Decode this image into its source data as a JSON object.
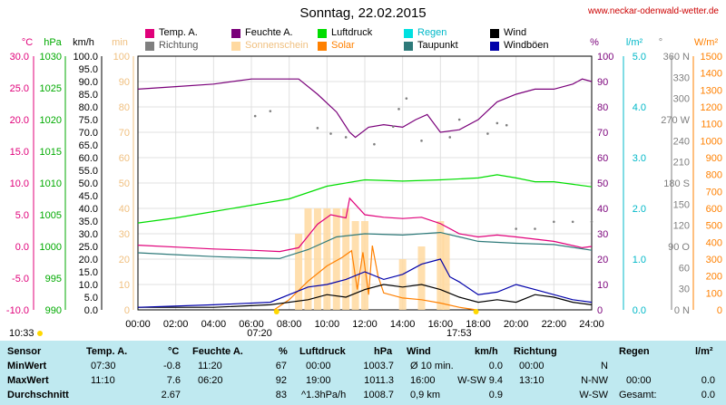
{
  "title": "Sonntag, 22.02.2015",
  "site": "www.neckar-odenwald-wetter.de",
  "legend": [
    {
      "label": "Temp. A.",
      "color": "#e0007a"
    },
    {
      "label": "Feuchte A.",
      "color": "#7a007a"
    },
    {
      "label": "Luftdruck",
      "color": "#00dd00"
    },
    {
      "label": "Regen",
      "color": "#00e0e0"
    },
    {
      "label": "Wind",
      "color": "#000000"
    },
    {
      "label": "Richtung",
      "color": "#7f7f7f"
    },
    {
      "label": "Sonnenschein",
      "color": "#ffd9a0"
    },
    {
      "label": "Solar",
      "color": "#ff8000"
    },
    {
      "label": "Taupunkt",
      "color": "#2e7a7a"
    },
    {
      "label": "Windböen",
      "color": "#0000aa"
    }
  ],
  "axis_headers": {
    "temp": "°C",
    "press": "hPa",
    "wind": "km/h",
    "sun": "min",
    "hum": "%",
    "rain": "l/m²",
    "dir": "°",
    "solar": "W/m²"
  },
  "sunrise": "07:20",
  "sunset": "17:53",
  "start_time": "10:33",
  "chart_data": {
    "type": "line",
    "title": "Sonntag, 22.02.2015",
    "x_ticks": [
      "00:00",
      "02:00",
      "04:00",
      "06:00",
      "08:00",
      "10:00",
      "12:00",
      "14:00",
      "16:00",
      "18:00",
      "20:00",
      "22:00",
      "24:00"
    ],
    "axes": {
      "temp": {
        "min": -10,
        "max": 30,
        "ticks": [
          "30.0",
          "25.0",
          "20.0",
          "15.0",
          "10.0",
          "5.0",
          "0.0",
          "-5.0",
          "-10.0"
        ]
      },
      "press": {
        "min": 990,
        "max": 1030,
        "ticks": [
          "1030",
          "1025",
          "1020",
          "1015",
          "1010",
          "1005",
          "1000",
          "995",
          "990"
        ]
      },
      "wind": {
        "min": 0,
        "max": 100,
        "ticks": [
          "100.0",
          "95.0",
          "90.0",
          "85.0",
          "80.0",
          "75.0",
          "70.0",
          "65.0",
          "60.0",
          "55.0",
          "50.0",
          "45.0",
          "40.0",
          "35.0",
          "30.0",
          "25.0",
          "20.0",
          "15.0",
          "10.0",
          "5.0",
          "0.0"
        ]
      },
      "sun": {
        "min": 0,
        "max": 100,
        "ticks": [
          "100",
          "90",
          "80",
          "70",
          "60",
          "50",
          "40",
          "30",
          "20",
          "10",
          "0"
        ]
      },
      "hum": {
        "min": 0,
        "max": 100,
        "ticks": [
          "100",
          "90",
          "80",
          "70",
          "60",
          "50",
          "40",
          "30",
          "20",
          "10",
          "0"
        ]
      },
      "rain": {
        "min": 0,
        "max": 5,
        "ticks": [
          "5.0",
          "4.0",
          "3.0",
          "2.0",
          "1.0",
          "0.0"
        ]
      },
      "dir": {
        "min": 0,
        "max": 360,
        "ticks": [
          "360 N",
          "330",
          "300",
          "270 W",
          "240",
          "210",
          "180 S",
          "150",
          "120",
          "90 O",
          "60",
          "30",
          "0 N"
        ]
      },
      "solar": {
        "min": 0,
        "max": 1500,
        "ticks": [
          "1500",
          "1400",
          "1300",
          "1200",
          "1100",
          "1000",
          "900",
          "800",
          "700",
          "600",
          "500",
          "400",
          "300",
          "200",
          "100",
          "0"
        ]
      }
    },
    "series": [
      {
        "name": "Temp. A.",
        "axis": "temp",
        "color": "#e0007a",
        "points": [
          [
            0,
            0.2
          ],
          [
            2,
            -0.1
          ],
          [
            4,
            -0.4
          ],
          [
            6,
            -0.6
          ],
          [
            7.5,
            -0.8
          ],
          [
            8.5,
            -0.2
          ],
          [
            9.5,
            3.5
          ],
          [
            10.2,
            5
          ],
          [
            11,
            4.5
          ],
          [
            11.2,
            7.6
          ],
          [
            12,
            5.0
          ],
          [
            13,
            4.6
          ],
          [
            14,
            4.4
          ],
          [
            15,
            4.6
          ],
          [
            16,
            3.6
          ],
          [
            17,
            2.0
          ],
          [
            18,
            1.5
          ],
          [
            19,
            1.8
          ],
          [
            20,
            1.5
          ],
          [
            22,
            0.8
          ],
          [
            23.5,
            -0.2
          ],
          [
            24,
            0
          ]
        ]
      },
      {
        "name": "Feuchte A.",
        "axis": "hum",
        "color": "#7a007a",
        "points": [
          [
            0,
            87
          ],
          [
            2,
            88
          ],
          [
            4,
            89
          ],
          [
            6,
            91
          ],
          [
            7.5,
            91
          ],
          [
            8.5,
            91
          ],
          [
            9.5,
            85
          ],
          [
            10.5,
            78
          ],
          [
            11.2,
            70
          ],
          [
            11.5,
            68
          ],
          [
            12.2,
            72
          ],
          [
            13,
            73
          ],
          [
            14,
            72
          ],
          [
            14.7,
            75
          ],
          [
            15.3,
            77
          ],
          [
            16,
            70
          ],
          [
            17,
            71
          ],
          [
            18,
            75
          ],
          [
            19,
            82
          ],
          [
            20,
            85
          ],
          [
            21,
            87
          ],
          [
            22,
            87
          ],
          [
            23,
            89
          ],
          [
            23.5,
            91
          ],
          [
            24,
            90
          ]
        ]
      },
      {
        "name": "Luftdruck",
        "axis": "press",
        "color": "#00dd00",
        "points": [
          [
            0,
            1003.7
          ],
          [
            2,
            1004.5
          ],
          [
            4,
            1005.5
          ],
          [
            6,
            1006.5
          ],
          [
            8,
            1007.5
          ],
          [
            10,
            1009.5
          ],
          [
            12,
            1010.5
          ],
          [
            14,
            1010.3
          ],
          [
            16,
            1010.5
          ],
          [
            18,
            1010.8
          ],
          [
            19,
            1011.3
          ],
          [
            20,
            1010.8
          ],
          [
            21,
            1010.2
          ],
          [
            22,
            1010.2
          ],
          [
            23,
            1009.8
          ],
          [
            24,
            1009.4
          ]
        ]
      },
      {
        "name": "Taupunkt",
        "axis": "temp",
        "color": "#2e7a7a",
        "points": [
          [
            0,
            -1.0
          ],
          [
            2,
            -1.3
          ],
          [
            4,
            -1.6
          ],
          [
            6,
            -1.8
          ],
          [
            7.5,
            -1.9
          ],
          [
            9,
            -0.5
          ],
          [
            10.5,
            1.5
          ],
          [
            12,
            2.0
          ],
          [
            14,
            1.8
          ],
          [
            16,
            2.2
          ],
          [
            17,
            1.5
          ],
          [
            18,
            0.8
          ],
          [
            20,
            0.5
          ],
          [
            22,
            0.3
          ],
          [
            24,
            -0.6
          ]
        ]
      },
      {
        "name": "Solar",
        "axis": "solar",
        "color": "#ff8000",
        "points": [
          [
            7.2,
            0
          ],
          [
            8,
            60
          ],
          [
            9,
            170
          ],
          [
            10,
            260
          ],
          [
            10.8,
            310
          ],
          [
            11.3,
            350
          ],
          [
            11.6,
            120
          ],
          [
            11.9,
            340
          ],
          [
            12.2,
            90
          ],
          [
            12.4,
            380
          ],
          [
            12.7,
            200
          ],
          [
            13,
            100
          ],
          [
            14,
            70
          ],
          [
            15,
            60
          ],
          [
            16,
            40
          ],
          [
            17,
            15
          ],
          [
            17.9,
            0
          ]
        ]
      },
      {
        "name": "Wind",
        "axis": "wind",
        "color": "#000000",
        "points": [
          [
            0,
            1
          ],
          [
            4,
            1
          ],
          [
            7,
            2
          ],
          [
            9,
            4
          ],
          [
            10,
            6
          ],
          [
            11,
            5
          ],
          [
            12,
            8
          ],
          [
            13,
            10
          ],
          [
            14,
            9
          ],
          [
            15,
            10
          ],
          [
            16,
            8
          ],
          [
            17,
            5
          ],
          [
            18,
            3
          ],
          [
            19,
            4
          ],
          [
            20,
            3
          ],
          [
            21,
            6
          ],
          [
            22,
            5
          ],
          [
            23,
            3
          ],
          [
            24,
            2
          ]
        ]
      },
      {
        "name": "Windböen",
        "axis": "wind",
        "color": "#0000aa",
        "points": [
          [
            0,
            1
          ],
          [
            4,
            2
          ],
          [
            7,
            3
          ],
          [
            8,
            6
          ],
          [
            9,
            9
          ],
          [
            10,
            10
          ],
          [
            11,
            12
          ],
          [
            12,
            15
          ],
          [
            13,
            12
          ],
          [
            14,
            14
          ],
          [
            15,
            18
          ],
          [
            16,
            20
          ],
          [
            16.5,
            13
          ],
          [
            17,
            11
          ],
          [
            18,
            6
          ],
          [
            19,
            7
          ],
          [
            20,
            10
          ],
          [
            21,
            8
          ],
          [
            22,
            6
          ],
          [
            23,
            4
          ],
          [
            24,
            3
          ]
        ]
      }
    ],
    "direction_points": [
      [
        6.2,
        275
      ],
      [
        7,
        282
      ],
      [
        9.5,
        258
      ],
      [
        10.2,
        250
      ],
      [
        11,
        245
      ],
      [
        12.5,
        235
      ],
      [
        13.5,
        260
      ],
      [
        13.8,
        285
      ],
      [
        14.2,
        300
      ],
      [
        15,
        240
      ],
      [
        16.5,
        245
      ],
      [
        17,
        270
      ],
      [
        18.5,
        250
      ],
      [
        19,
        265
      ],
      [
        19.5,
        262
      ],
      [
        20,
        115
      ],
      [
        21,
        115
      ],
      [
        22,
        125
      ],
      [
        23,
        125
      ],
      [
        24,
        125
      ]
    ],
    "sunshine_minutes_series": [
      [
        8.5,
        30
      ],
      [
        9,
        40
      ],
      [
        9.5,
        40
      ],
      [
        10,
        40
      ],
      [
        10.5,
        40
      ],
      [
        11,
        40
      ],
      [
        11.5,
        35
      ],
      [
        12,
        35
      ],
      [
        14,
        20
      ],
      [
        15,
        25
      ],
      [
        16,
        35
      ],
      [
        16.3,
        30
      ]
    ]
  },
  "stats": {
    "headers": [
      "Sensor",
      "Temp. A.",
      "°C",
      "Feuchte A.",
      "%",
      "Luftdruck",
      "hPa",
      "Wind",
      "km/h",
      "Richtung",
      "Regen",
      "l/m²"
    ],
    "rows": [
      {
        "label": "MinWert",
        "temp_time": "07:30",
        "temp_val": "-0.8",
        "hum_time": "11:20",
        "hum_val": "67",
        "press_time": "00:00",
        "press_val": "1003.7",
        "wind_time": "Ø 10 min.",
        "wind_val": "0.0",
        "dir_time": "00:00",
        "dir_val": "N",
        "rain_time": "",
        "rain_val": ""
      },
      {
        "label": "MaxWert",
        "temp_time": "11:10",
        "temp_val": "7.6",
        "hum_time": "06:20",
        "hum_val": "92",
        "press_time": "19:00",
        "press_val": "1011.3",
        "wind_time": "16:00",
        "wind_val": "W-SW 9.4",
        "dir_time": "13:10",
        "dir_val": "N-NW",
        "rain_time": "00:00",
        "rain_val": "0.0"
      },
      {
        "label": "Durchschnitt",
        "temp_time": "",
        "temp_val": "2.67",
        "hum_time": "",
        "hum_val": "83",
        "press_time": "^1.3hPa/h",
        "press_val": "1008.7",
        "wind_time": "0,9 km",
        "wind_val": "0.9",
        "dir_time": "",
        "dir_val": "W-SW",
        "rain_time": "Gesamt:",
        "rain_val": "0.0"
      }
    ]
  }
}
